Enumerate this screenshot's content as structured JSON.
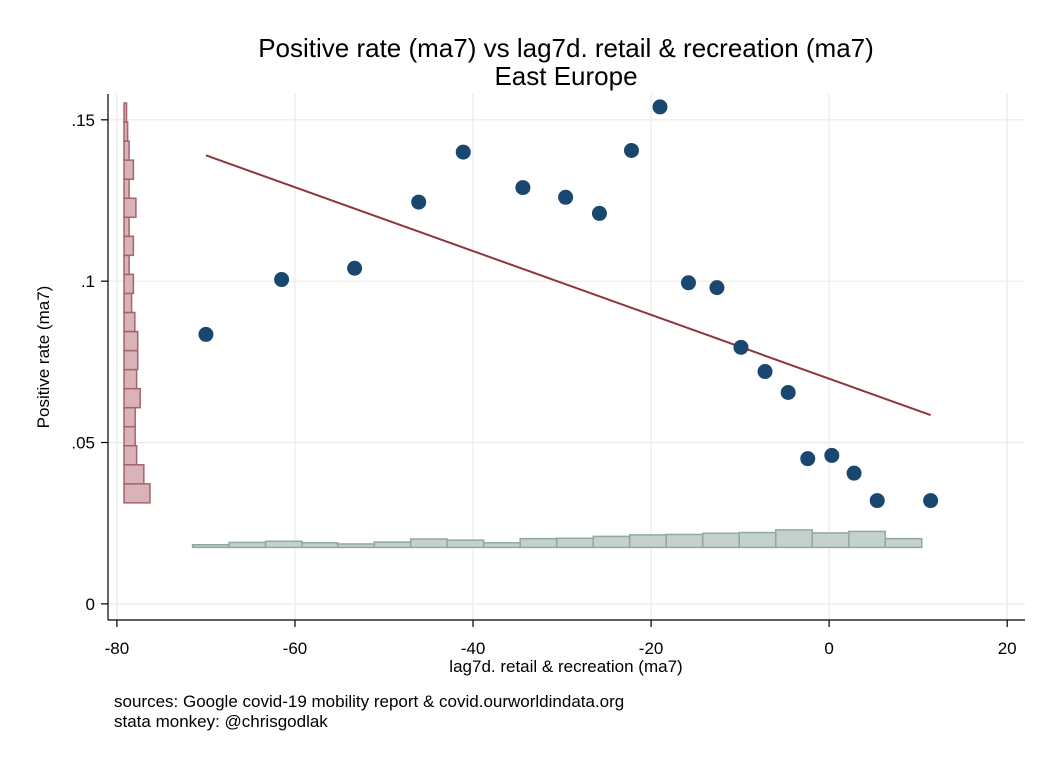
{
  "chart_data": {
    "type": "scatter",
    "title": "Positive rate (ma7) vs lag7d. retail & recreation (ma7)",
    "subtitle": "East Europe",
    "xlabel": "lag7d. retail & recreation (ma7)",
    "ylabel": "Positive rate (ma7)",
    "xlim": [
      -81,
      22
    ],
    "ylim": [
      -0.005,
      0.158
    ],
    "xticks": [
      -80,
      -60,
      -40,
      -20,
      0,
      20
    ],
    "xtick_labels": [
      "-80",
      "-60",
      "-40",
      "-20",
      "0",
      "20"
    ],
    "yticks": [
      0,
      0.05,
      0.1,
      0.15
    ],
    "ytick_labels": [
      "0",
      ".05",
      ".1",
      ".15"
    ],
    "grid": true,
    "legend": "none",
    "points": [
      {
        "x": -70.0,
        "y": 0.0835
      },
      {
        "x": -61.5,
        "y": 0.1005
      },
      {
        "x": -53.3,
        "y": 0.104
      },
      {
        "x": -46.1,
        "y": 0.1245
      },
      {
        "x": -41.1,
        "y": 0.14
      },
      {
        "x": -34.4,
        "y": 0.129
      },
      {
        "x": -29.6,
        "y": 0.126
      },
      {
        "x": -25.8,
        "y": 0.121
      },
      {
        "x": -22.2,
        "y": 0.1405
      },
      {
        "x": -19.0,
        "y": 0.154
      },
      {
        "x": -15.8,
        "y": 0.0995
      },
      {
        "x": -12.6,
        "y": 0.098
      },
      {
        "x": -9.9,
        "y": 0.0795
      },
      {
        "x": -7.2,
        "y": 0.072
      },
      {
        "x": -4.6,
        "y": 0.0655
      },
      {
        "x": -2.4,
        "y": 0.045
      },
      {
        "x": 0.3,
        "y": 0.046
      },
      {
        "x": 2.8,
        "y": 0.0405
      },
      {
        "x": 5.4,
        "y": 0.032
      },
      {
        "x": 11.4,
        "y": 0.032
      }
    ],
    "fit_line": {
      "x": [
        -70.0,
        11.4
      ],
      "y": [
        0.139,
        0.0585
      ]
    },
    "x_histogram": {
      "bin_edges": [
        -71.5,
        -67.4,
        -63.3,
        -59.2,
        -55.2,
        -51.1,
        -47.0,
        -42.9,
        -38.8,
        -34.7,
        -30.6,
        -26.5,
        -22.4,
        -18.3,
        -14.2,
        -10.1,
        -6.0,
        -1.9,
        2.2,
        6.3,
        10.4
      ],
      "heights": [
        0.07,
        0.13,
        0.16,
        0.12,
        0.09,
        0.14,
        0.22,
        0.19,
        0.12,
        0.23,
        0.24,
        0.29,
        0.33,
        0.34,
        0.37,
        0.39,
        0.46,
        0.38,
        0.42,
        0.23
      ]
    },
    "y_histogram": {
      "bin_edges": [
        0.0313,
        0.0372,
        0.0431,
        0.049,
        0.0549,
        0.0608,
        0.0667,
        0.0726,
        0.0785,
        0.0844,
        0.0903,
        0.0962,
        0.1021,
        0.108,
        0.1139,
        0.1198,
        0.1257,
        0.1316,
        0.1375,
        0.1434,
        0.1493,
        0.1552
      ],
      "heights": [
        0.72,
        0.55,
        0.35,
        0.31,
        0.31,
        0.45,
        0.35,
        0.38,
        0.38,
        0.3,
        0.21,
        0.26,
        0.14,
        0.26,
        0.14,
        0.33,
        0.14,
        0.26,
        0.14,
        0.1,
        0.07
      ]
    },
    "colors": {
      "points": "#1a476f",
      "fit_line": "#90353b",
      "x_hist_fill": "#c5d1cc",
      "x_hist_stroke": "#8fa99f",
      "y_hist_fill": "#d9b3b8",
      "y_hist_stroke": "#a5646c",
      "grid": "#eaeaea"
    }
  },
  "notes": [
    "sources: Google covid-19 mobility report & covid.ourworldindata.org",
    "stata monkey: @chrisgodlak"
  ]
}
